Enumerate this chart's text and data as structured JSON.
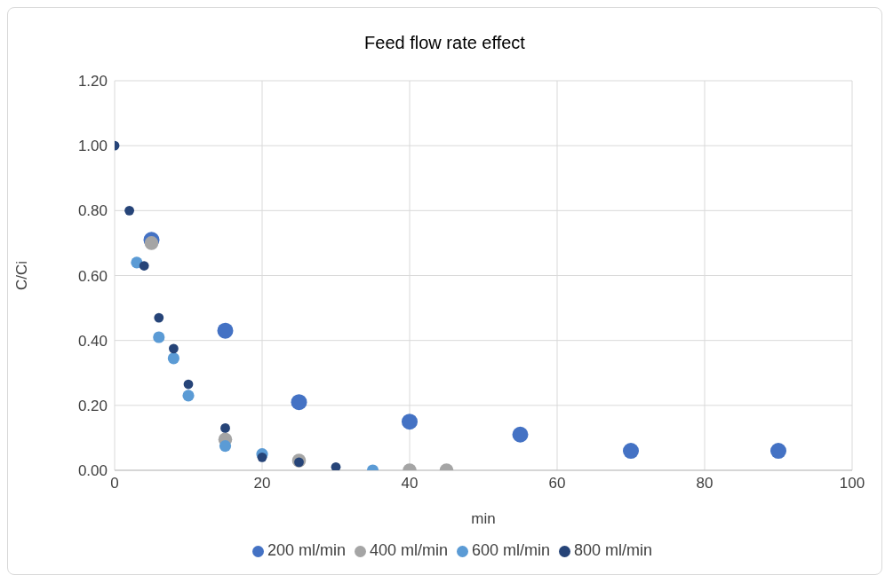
{
  "chart_data": {
    "type": "scatter",
    "title": "Feed flow rate effect",
    "xlabel": "min",
    "ylabel": "C/Ci",
    "xlim": [
      0,
      100
    ],
    "xticks": [
      0,
      20,
      40,
      60,
      80,
      100
    ],
    "ylim": [
      0,
      1.2
    ],
    "yticks": [
      {
        "value": 0,
        "label": "0.00"
      },
      {
        "value": 0.2,
        "label": "0.20"
      },
      {
        "value": 0.4,
        "label": "0.40"
      },
      {
        "value": 0.6,
        "label": "0.60"
      },
      {
        "value": 0.8,
        "label": "0.80"
      },
      {
        "value": 1,
        "label": "1.00"
      },
      {
        "value": 1.2,
        "label": "1.20"
      }
    ],
    "grid": true,
    "legend": "bottom",
    "marker": "circle",
    "series": [
      {
        "name": "200 ml/min",
        "color": "#4472c4",
        "x": [
          5,
          15,
          25,
          40,
          55,
          70,
          90
        ],
        "values": [
          0.71,
          0.43,
          0.21,
          0.15,
          0.11,
          0.06,
          0.06
        ]
      },
      {
        "name": "400 ml/min",
        "color": "#a5a5a5",
        "x": [
          5,
          15,
          25,
          40,
          45
        ],
        "values": [
          0.7,
          0.095,
          0.03,
          0,
          0
        ]
      },
      {
        "name": "600 ml/min",
        "color": "#5b9bd5",
        "x": [
          3,
          6,
          8,
          10,
          15,
          20,
          35
        ],
        "values": [
          0.64,
          0.41,
          0.345,
          0.23,
          0.075,
          0.05,
          0
        ]
      },
      {
        "name": "800 ml/min",
        "color": "#264478",
        "x": [
          0,
          2,
          4,
          6,
          8,
          10,
          15,
          20,
          25,
          30
        ],
        "values": [
          1,
          0.8,
          0.63,
          0.47,
          0.375,
          0.265,
          0.13,
          0.04,
          0.025,
          0.01
        ]
      }
    ]
  }
}
